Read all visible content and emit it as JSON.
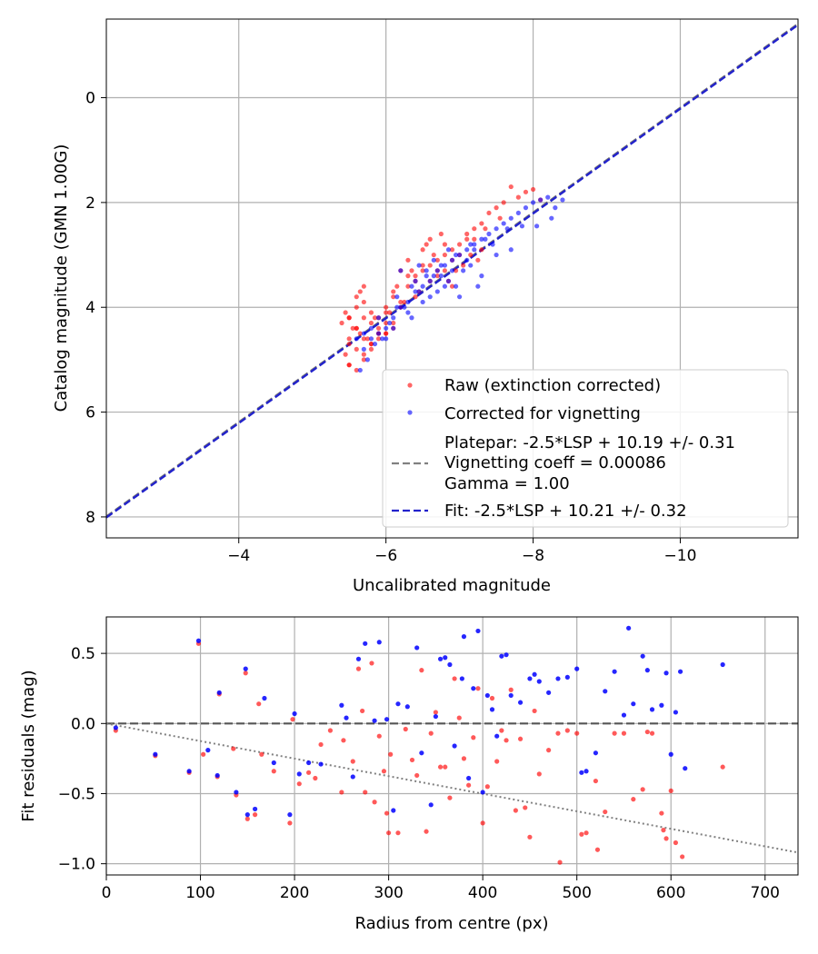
{
  "colors": {
    "raw": "#ff0000",
    "corrected": "#0000ff",
    "platepar": "#555555",
    "fit": "#2222cc",
    "grid": "#b0b0b0",
    "vignette_model": "#808080"
  },
  "chart_data": [
    {
      "type": "scatter",
      "xlabel": "Uncalibrated magnitude",
      "ylabel": "Catalog magnitude (GMN 1.00G)",
      "xlim": [
        -2.2,
        -11.6
      ],
      "ylim": [
        8.4,
        -1.5
      ],
      "y_inverted": true,
      "x_inverted": true,
      "grid": true,
      "xticks": [
        -4,
        -6,
        -8,
        -10
      ],
      "xtick_labels": [
        "−4",
        "−6",
        "−8",
        "−10"
      ],
      "yticks": [
        0,
        2,
        4,
        6,
        8
      ],
      "ytick_labels": [
        "0",
        "2",
        "4",
        "6",
        "8"
      ],
      "legend_position": "lower-right",
      "legend": [
        {
          "label": "Raw (extinction corrected)",
          "kind": "dot",
          "color": "#ff0000"
        },
        {
          "label": "Corrected for vignetting",
          "kind": "dot",
          "color": "#0000ff"
        },
        {
          "label": "Platepar: -2.5*LSP + 10.19 +/- 0.31",
          "label2": "Vignetting coeff = 0.00086",
          "label3": "Gamma = 1.00",
          "kind": "dash",
          "color": "#808080"
        },
        {
          "label": "Fit: -2.5*LSP + 10.21 +/- 0.32",
          "kind": "dash",
          "color": "#2222cc"
        }
      ],
      "lines": [
        {
          "name": "Fit: -2.5*LSP + 10.21 +/- 0.32",
          "slope": 1,
          "intercept": 10.21
        }
      ],
      "series": [
        {
          "name": "Raw (extinction corrected)",
          "x": [
            -5.6,
            -5.7,
            -5.5,
            -5.8,
            -5.9,
            -6.0,
            -6.1,
            -5.5,
            -5.6,
            -5.4,
            -5.45,
            -5.6,
            -5.7,
            -5.8,
            -5.9,
            -6.0,
            -5.7,
            -5.8,
            -5.5,
            -5.6,
            -5.7,
            -5.9,
            -6.0,
            -6.2,
            -6.1,
            -6.3,
            -6.4,
            -6.5,
            -6.6,
            -6.7,
            -6.8,
            -6.9,
            -7.0,
            -7.1,
            -7.2,
            -7.3,
            -7.4,
            -7.5,
            -7.6,
            -7.7,
            -7.8,
            -7.9,
            -8.0,
            -8.1,
            -6.2,
            -6.3,
            -6.5,
            -6.6,
            -6.4,
            -6.7,
            -6.8,
            -6.9,
            -6.1,
            -6.0,
            -5.9,
            -5.8,
            -5.7,
            -5.65,
            -5.55,
            -5.5,
            -5.6,
            -5.7,
            -5.8,
            -6.0,
            -6.2,
            -6.4,
            -6.6,
            -6.8,
            -7.0,
            -7.2,
            -5.45,
            -5.5,
            -5.9,
            -6.1,
            -6.3,
            -6.5,
            -6.7,
            -6.9,
            -7.1,
            -7.3,
            -5.6,
            -5.75,
            -5.85,
            -6.05,
            -6.25,
            -6.45,
            -6.65,
            -6.85,
            -7.05,
            -7.25,
            -5.5,
            -5.65,
            -6.15,
            -6.35,
            -6.55,
            -6.75,
            -6.95,
            -7.15,
            -7.35,
            -7.55
          ],
          "y": [
            5.2,
            5.0,
            5.1,
            4.8,
            4.6,
            4.5,
            4.3,
            4.6,
            4.4,
            4.3,
            4.1,
            4.0,
            3.9,
            4.1,
            4.2,
            4.0,
            4.9,
            4.7,
            4.7,
            4.8,
            4.6,
            4.4,
            4.1,
            3.9,
            3.8,
            3.6,
            3.5,
            3.3,
            3.2,
            3.1,
            3.0,
            2.9,
            2.8,
            2.7,
            2.5,
            2.4,
            2.2,
            2.1,
            2.0,
            1.7,
            1.9,
            1.8,
            1.75,
            1.95,
            3.3,
            3.1,
            2.9,
            2.7,
            3.4,
            3.3,
            2.8,
            3.6,
            4.4,
            4.3,
            4.5,
            4.3,
            4.2,
            4.5,
            4.4,
            4.2,
            3.8,
            3.6,
            4.7,
            4.5,
            4.0,
            3.8,
            3.5,
            3.3,
            3.0,
            2.7,
            4.9,
            5.1,
            4.5,
            3.7,
            3.4,
            3.2,
            3.4,
            3.1,
            2.6,
            2.9,
            4.4,
            4.6,
            4.2,
            4.1,
            3.9,
            3.7,
            3.0,
            3.5,
            3.2,
            3.1,
            4.2,
            3.7,
            3.6,
            3.3,
            2.8,
            2.6,
            3.3,
            3.0,
            2.5,
            2.3
          ]
        },
        {
          "name": "Corrected for vignetting",
          "x": [
            -5.7,
            -5.8,
            -5.9,
            -6.0,
            -6.1,
            -6.2,
            -6.3,
            -6.4,
            -6.5,
            -6.6,
            -6.7,
            -6.8,
            -6.9,
            -7.0,
            -7.1,
            -7.2,
            -7.3,
            -7.4,
            -7.5,
            -7.6,
            -7.7,
            -7.8,
            -7.9,
            -8.0,
            -8.1,
            -8.2,
            -8.3,
            -8.4,
            -6.15,
            -6.35,
            -6.55,
            -6.75,
            -6.95,
            -7.15,
            -6.05,
            -6.25,
            -6.45,
            -6.65,
            -6.85,
            -7.05,
            -7.25,
            -5.95,
            -5.85,
            -5.75,
            -5.65,
            -6.5,
            -6.7,
            -6.9,
            -7.1,
            -7.3,
            -7.5,
            -6.3,
            -6.1,
            -6.0,
            -5.9,
            -6.2,
            -6.4,
            -6.6,
            -6.8,
            -7.0,
            -5.8,
            -5.7,
            -5.6,
            -6.45,
            -6.65,
            -6.85,
            -7.35,
            -7.45,
            -7.65,
            -7.85,
            -8.05,
            -8.25,
            -6.15,
            -6.55,
            -6.95,
            -7.2,
            -7.7,
            -6.35,
            -6.75,
            -7.15
          ],
          "y": [
            4.8,
            4.6,
            4.5,
            4.4,
            4.2,
            4.0,
            3.9,
            3.7,
            3.6,
            3.5,
            3.3,
            3.2,
            3.1,
            3.0,
            2.9,
            2.8,
            2.7,
            2.6,
            2.5,
            2.4,
            2.3,
            2.2,
            2.1,
            2.0,
            1.95,
            1.9,
            2.1,
            1.95,
            3.8,
            3.6,
            3.4,
            3.2,
            3.0,
            2.8,
            4.3,
            4.0,
            3.7,
            3.4,
            3.5,
            3.3,
            3.6,
            4.6,
            4.7,
            5.0,
            5.2,
            3.9,
            3.7,
            3.3,
            3.1,
            3.4,
            3.0,
            4.1,
            4.4,
            4.6,
            4.2,
            3.3,
            3.5,
            3.8,
            3.6,
            3.8,
            4.4,
            4.5,
            4.6,
            3.2,
            3.1,
            2.9,
            2.7,
            2.8,
            2.5,
            2.45,
            2.45,
            2.3,
            4.0,
            3.3,
            3.6,
            2.9,
            2.9,
            4.2,
            3.4,
            3.2
          ]
        }
      ]
    },
    {
      "type": "scatter",
      "xlabel": "Radius from centre (px)",
      "ylabel": "Fit residuals (mag)",
      "xlim": [
        0,
        735
      ],
      "ylim": [
        -1.08,
        0.76
      ],
      "grid": true,
      "xticks": [
        0,
        100,
        200,
        300,
        400,
        500,
        600,
        700
      ],
      "xtick_labels": [
        "0",
        "100",
        "200",
        "300",
        "400",
        "500",
        "600",
        "700"
      ],
      "yticks": [
        0.5,
        0.0,
        -0.5,
        -1.0
      ],
      "ytick_labels": [
        "0.5",
        "0.0",
        "−0.5",
        "−1.0"
      ],
      "reference_lines": [
        {
          "kind": "zero",
          "y": 0
        },
        {
          "kind": "vignetting-model",
          "x": [
            0,
            735
          ],
          "y": [
            0,
            -0.92
          ]
        }
      ],
      "series": [
        {
          "name": "Raw (extinction corrected)",
          "x": [
            10,
            52,
            88,
            98,
            103,
            118,
            120,
            135,
            138,
            148,
            150,
            158,
            162,
            165,
            178,
            195,
            198,
            205,
            215,
            222,
            228,
            238,
            250,
            252,
            262,
            268,
            272,
            275,
            282,
            285,
            290,
            295,
            298,
            300,
            302,
            310,
            318,
            325,
            330,
            335,
            340,
            345,
            350,
            355,
            360,
            365,
            370,
            375,
            380,
            385,
            390,
            395,
            400,
            405,
            410,
            415,
            420,
            425,
            430,
            435,
            440,
            445,
            450,
            455,
            460,
            470,
            480,
            482,
            490,
            500,
            505,
            510,
            520,
            522,
            530,
            540,
            550,
            560,
            570,
            575,
            580,
            590,
            592,
            595,
            600,
            605,
            612,
            655
          ],
          "y": [
            -0.05,
            -0.23,
            -0.35,
            0.57,
            -0.22,
            -0.38,
            0.21,
            -0.18,
            -0.51,
            0.36,
            -0.68,
            -0.65,
            0.14,
            -0.22,
            -0.34,
            -0.71,
            0.03,
            -0.43,
            -0.35,
            -0.39,
            -0.15,
            -0.05,
            -0.49,
            -0.12,
            -0.27,
            0.39,
            0.09,
            -0.49,
            0.43,
            -0.56,
            -0.09,
            -0.34,
            -0.64,
            -0.78,
            -0.22,
            -0.78,
            -0.04,
            -0.26,
            -0.37,
            0.38,
            -0.77,
            -0.07,
            0.08,
            -0.31,
            -0.31,
            -0.53,
            0.32,
            0.04,
            -0.25,
            -0.44,
            -0.1,
            0.25,
            -0.71,
            -0.45,
            0.18,
            -0.27,
            -0.05,
            -0.12,
            0.24,
            -0.62,
            -0.11,
            -0.6,
            -0.81,
            0.09,
            -0.36,
            -0.19,
            -0.07,
            -0.99,
            -0.05,
            -0.07,
            -0.79,
            -0.78,
            -0.41,
            -0.9,
            -0.63,
            -0.07,
            -0.07,
            -0.54,
            -0.47,
            -0.06,
            -0.07,
            -0.64,
            -0.76,
            -0.82,
            -0.48,
            -0.85,
            -0.95,
            -0.31
          ]
        },
        {
          "name": "Corrected for vignetting",
          "x": [
            10,
            52,
            88,
            98,
            108,
            118,
            120,
            138,
            148,
            150,
            158,
            168,
            178,
            195,
            200,
            205,
            215,
            228,
            250,
            255,
            262,
            268,
            275,
            285,
            290,
            298,
            305,
            310,
            320,
            330,
            335,
            345,
            350,
            355,
            360,
            365,
            370,
            378,
            380,
            385,
            390,
            395,
            400,
            405,
            410,
            415,
            420,
            425,
            430,
            440,
            450,
            455,
            460,
            470,
            480,
            490,
            500,
            505,
            510,
            520,
            530,
            540,
            550,
            555,
            560,
            570,
            575,
            580,
            590,
            595,
            600,
            605,
            610,
            615,
            655
          ],
          "y": [
            -0.03,
            -0.22,
            -0.34,
            0.59,
            -0.19,
            -0.37,
            0.22,
            -0.49,
            0.39,
            -0.65,
            -0.61,
            0.18,
            -0.28,
            -0.65,
            0.07,
            -0.36,
            -0.28,
            -0.29,
            0.13,
            0.04,
            -0.38,
            0.46,
            0.57,
            0.02,
            0.58,
            0.03,
            -0.62,
            0.14,
            0.12,
            0.54,
            -0.21,
            -0.58,
            0.05,
            0.46,
            0.47,
            0.42,
            -0.16,
            0.32,
            0.62,
            -0.39,
            0.25,
            0.66,
            -0.49,
            0.2,
            0.1,
            -0.09,
            0.48,
            0.49,
            0.2,
            0.15,
            0.32,
            0.35,
            0.3,
            0.22,
            0.32,
            0.33,
            0.39,
            -0.35,
            -0.34,
            -0.21,
            0.23,
            0.37,
            0.06,
            0.68,
            0.14,
            0.48,
            0.38,
            0.1,
            0.13,
            0.36,
            -0.22,
            0.08,
            0.37,
            -0.32,
            0.42
          ]
        }
      ]
    }
  ]
}
